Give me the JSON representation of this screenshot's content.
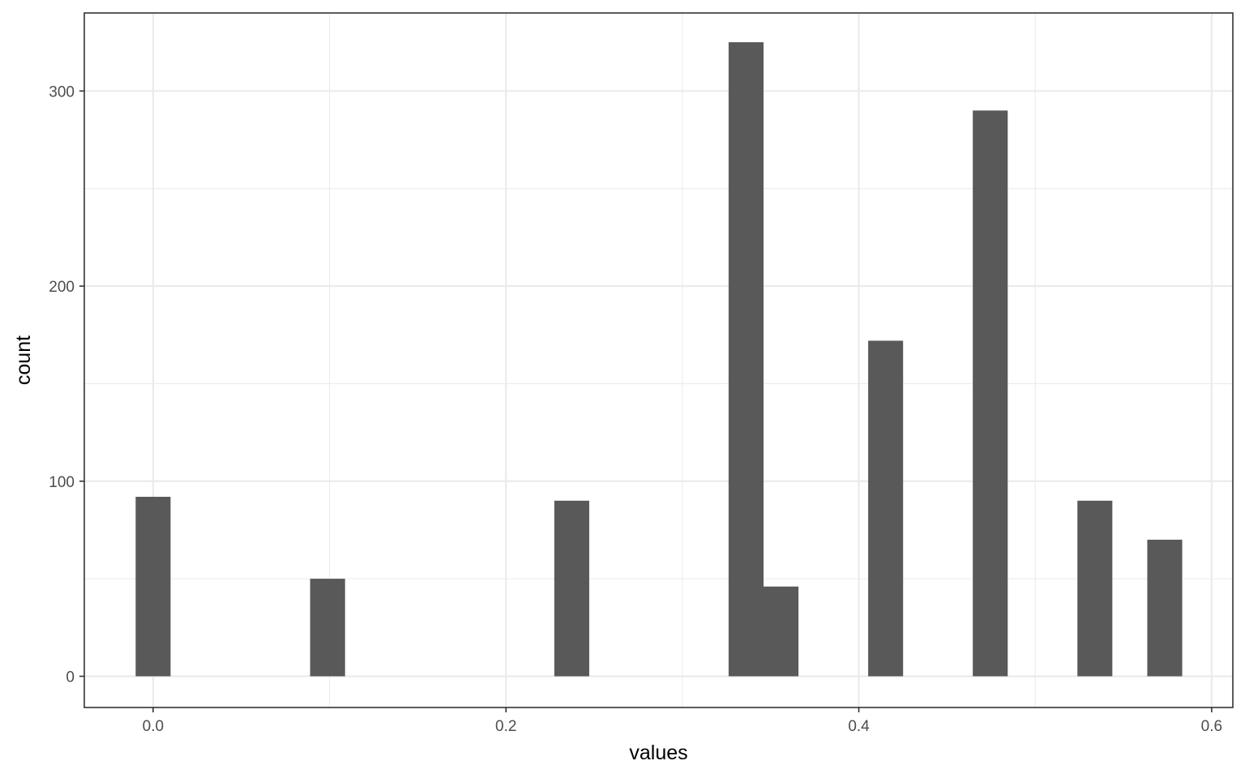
{
  "chart_data": {
    "type": "bar",
    "subtype": "histogram",
    "title": "",
    "xlabel": "values",
    "ylabel": "count",
    "xlim": [
      -0.039,
      0.612
    ],
    "ylim": [
      -16,
      340
    ],
    "x_ticks": [
      0.0,
      0.2,
      0.4,
      0.6
    ],
    "x_tick_labels": [
      "0.0",
      "0.2",
      "0.4",
      "0.6"
    ],
    "y_ticks": [
      0,
      100,
      200,
      300
    ],
    "y_tick_labels": [
      "0",
      "100",
      "200",
      "300"
    ],
    "bin_width": 0.0198,
    "bins": [
      {
        "x": 0.0,
        "count": 92
      },
      {
        "x": 0.0989,
        "count": 50
      },
      {
        "x": 0.2373,
        "count": 90
      },
      {
        "x": 0.3361,
        "count": 325
      },
      {
        "x": 0.3559,
        "count": 46
      },
      {
        "x": 0.4152,
        "count": 172
      },
      {
        "x": 0.4745,
        "count": 290
      },
      {
        "x": 0.5338,
        "count": 90
      },
      {
        "x": 0.5734,
        "count": 70
      }
    ],
    "bar_color": "#595959",
    "grid": true,
    "legend": "none"
  }
}
